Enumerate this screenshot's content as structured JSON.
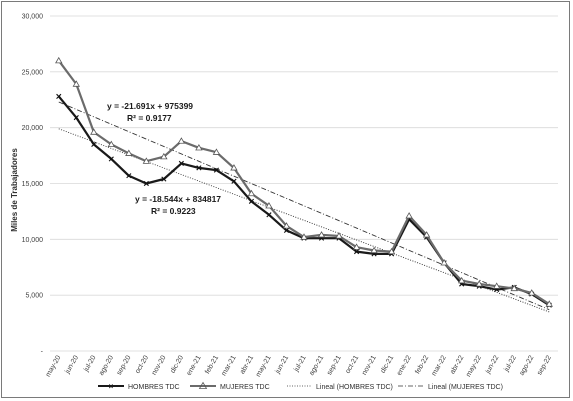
{
  "chart_data": {
    "type": "line",
    "ylabel": "Miles de Trabajadores",
    "xlabel": "",
    "title": "",
    "ylim": [
      0,
      30000
    ],
    "yticks": [
      {
        "value": 0,
        "label": "-"
      },
      {
        "value": 5000,
        "label": "5,000"
      },
      {
        "value": 10000,
        "label": "10,000"
      },
      {
        "value": 15000,
        "label": "15,000"
      },
      {
        "value": 20000,
        "label": "20,000"
      },
      {
        "value": 25000,
        "label": "25,000"
      },
      {
        "value": 30000,
        "label": "30,000"
      }
    ],
    "grid": true,
    "legend_position": "bottom",
    "categories": [
      "may-20",
      "jun-20",
      "jul-20",
      "ago-20",
      "sep-20",
      "oct-20",
      "nov-20",
      "dic-20",
      "ene-21",
      "feb-21",
      "mar-21",
      "abr-21",
      "may-21",
      "jun-21",
      "jul-21",
      "ago-21",
      "sep-21",
      "oct-21",
      "nov-21",
      "dic-21",
      "ene-22",
      "feb-22",
      "mar-22",
      "abr-22",
      "may-22",
      "jun-22",
      "jul-22",
      "ago-22",
      "sep-22"
    ],
    "series": [
      {
        "name": "HOMBRES TDC",
        "color": "#1a1a1a",
        "values": [
          22800,
          20900,
          18500,
          17200,
          15700,
          15000,
          15400,
          16800,
          16400,
          16200,
          15200,
          13400,
          12200,
          10800,
          10100,
          10100,
          10100,
          8900,
          8700,
          8700,
          11800,
          10200,
          7900,
          6000,
          5800,
          5500,
          5700,
          5100,
          4100
        ]
      },
      {
        "name": "MUJERES TDC",
        "color": "#6b6b6b",
        "values": [
          26000,
          23900,
          19600,
          18500,
          17700,
          17000,
          17400,
          18800,
          18200,
          17800,
          16400,
          14100,
          13000,
          11200,
          10200,
          10400,
          10300,
          9300,
          9000,
          8900,
          12100,
          10400,
          7900,
          6300,
          6000,
          5800,
          5600,
          5200,
          4200
        ]
      }
    ],
    "trendlines": [
      {
        "name": "Lineal (HOMBRES TDC)",
        "slope": -18.544,
        "intercept": 834817,
        "r2": 0.9223,
        "equation": "y = -18.544x + 834817",
        "r2_label": "R² = 0.9223",
        "start": 19900,
        "end": 3500
      },
      {
        "name": "Lineal (MUJERES TDC)",
        "slope": -21.691,
        "intercept": 975399,
        "r2": 0.9177,
        "equation": "y = -21.691x + 975399",
        "r2_label": "R² = 0.9177",
        "start": 22300,
        "end": 3700
      }
    ]
  }
}
